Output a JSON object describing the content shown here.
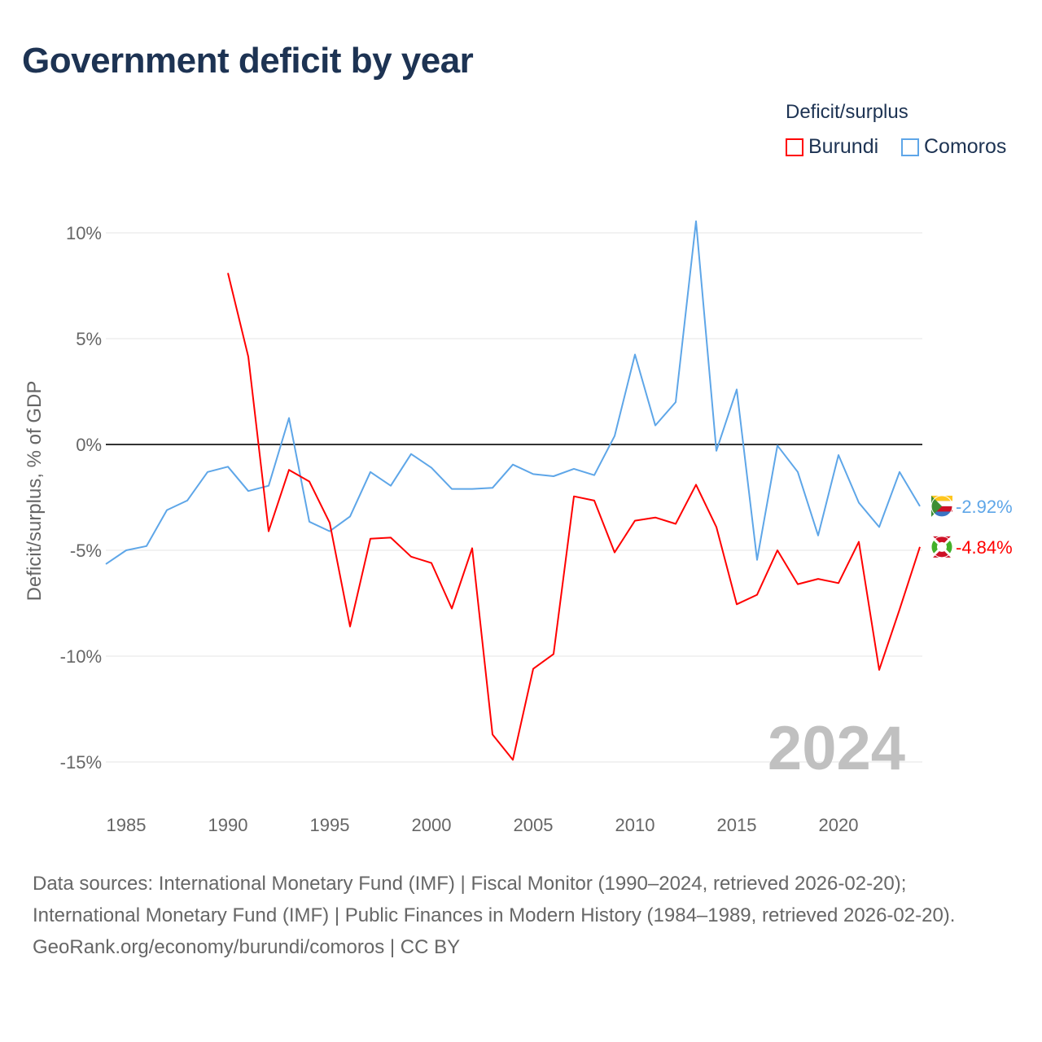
{
  "title": "Government deficit by year",
  "legend": {
    "title": "Deficit/surplus",
    "items": [
      {
        "name": "Burundi",
        "color": "#ff0000"
      },
      {
        "name": "Comoros",
        "color": "#5ea6e8"
      }
    ]
  },
  "chart_data": {
    "type": "line",
    "title": "Government deficit by year",
    "xlabel": "",
    "ylabel": "Deficit/surplus, % of GDP",
    "xlim": [
      1984,
      2024
    ],
    "ylim": [
      -17,
      11
    ],
    "xticks": [
      1985,
      1990,
      1995,
      2000,
      2005,
      2010,
      2015,
      2020
    ],
    "yticks": [
      10,
      5,
      0,
      -5,
      -10,
      -15
    ],
    "ytick_labels": [
      "10%",
      "5%",
      "0%",
      "-5%",
      "-10%",
      "-15%"
    ],
    "grid": true,
    "legend_position": "top-right",
    "year_watermark": "2024",
    "series": [
      {
        "name": "Comoros",
        "color": "#5ea6e8",
        "end_label": "-2.92%",
        "x": [
          1984,
          1985,
          1986,
          1987,
          1988,
          1989,
          1990,
          1991,
          1992,
          1993,
          1994,
          1995,
          1996,
          1997,
          1998,
          1999,
          2000,
          2001,
          2002,
          2003,
          2004,
          2005,
          2006,
          2007,
          2008,
          2009,
          2010,
          2011,
          2012,
          2013,
          2014,
          2015,
          2016,
          2017,
          2018,
          2019,
          2020,
          2021,
          2022,
          2023,
          2024
        ],
        "values": [
          -5.65,
          -5.0,
          -4.8,
          -3.1,
          -2.65,
          -1.3,
          -1.05,
          -2.2,
          -1.95,
          1.25,
          -3.65,
          -4.1,
          -3.4,
          -1.3,
          -1.95,
          -0.45,
          -1.1,
          -2.1,
          -2.1,
          -2.05,
          -0.95,
          -1.4,
          -1.5,
          -1.15,
          -1.45,
          0.4,
          4.25,
          0.9,
          2.0,
          10.55,
          -0.3,
          2.6,
          -5.45,
          -0.05,
          -1.3,
          -4.3,
          -0.5,
          -2.75,
          -3.9,
          -1.3,
          -2.92
        ]
      },
      {
        "name": "Burundi",
        "color": "#ff0000",
        "end_label": "-4.84%",
        "x": [
          1990,
          1991,
          1992,
          1993,
          1994,
          1995,
          1996,
          1997,
          1998,
          1999,
          2000,
          2001,
          2002,
          2003,
          2004,
          2005,
          2006,
          2007,
          2008,
          2009,
          2010,
          2011,
          2012,
          2013,
          2014,
          2015,
          2016,
          2017,
          2018,
          2019,
          2020,
          2021,
          2022,
          2023,
          2024
        ],
        "values": [
          8.1,
          4.15,
          -4.1,
          -1.2,
          -1.75,
          -3.7,
          -8.6,
          -4.45,
          -4.4,
          -5.3,
          -5.6,
          -7.75,
          -4.9,
          -13.7,
          -14.9,
          -10.6,
          -9.9,
          -2.45,
          -2.65,
          -5.1,
          -3.6,
          -3.45,
          -3.75,
          -1.9,
          -3.9,
          -7.55,
          -7.1,
          -5.0,
          -6.6,
          -6.35,
          -6.55,
          -4.6,
          -10.65,
          -7.8,
          -4.84
        ]
      }
    ]
  },
  "sources": {
    "line1": "Data sources: International Monetary Fund (IMF) | Fiscal Monitor (1990–2024, retrieved 2026-02-20); International Monetary Fund (IMF) | Public Finances in Modern History (1984–1989, retrieved 2026-02-20).",
    "line2": "GeoRank.org/economy/burundi/comoros | CC BY"
  }
}
